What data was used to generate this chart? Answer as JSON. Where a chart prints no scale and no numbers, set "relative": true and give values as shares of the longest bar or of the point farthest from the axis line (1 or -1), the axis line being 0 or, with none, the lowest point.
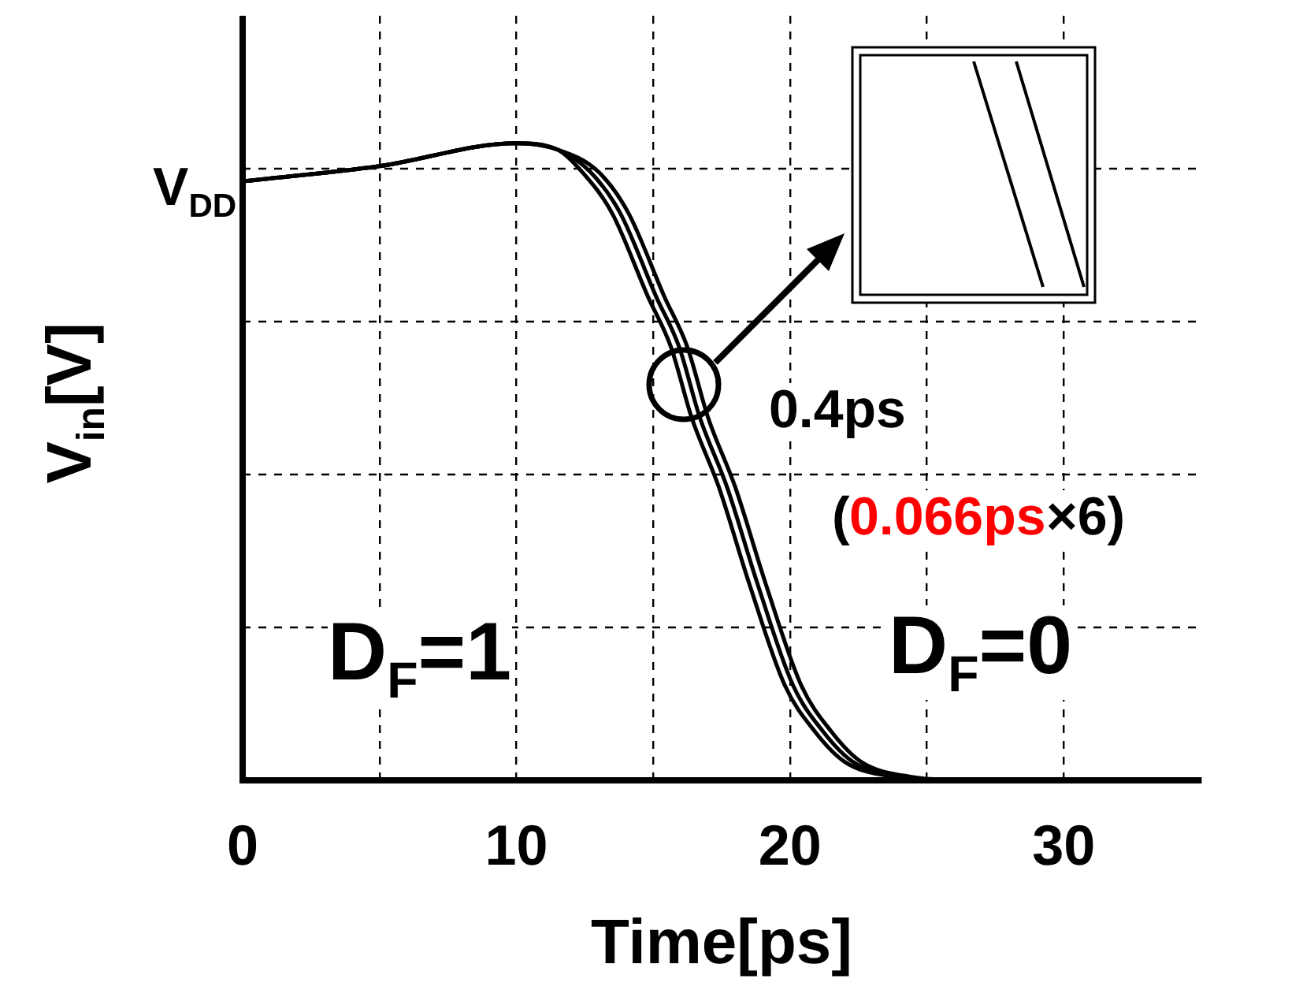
{
  "chart_data": {
    "type": "line",
    "xlabel": "Time[ps]",
    "ylabel": "V$_{in}$[V]",
    "relative": true,
    "xlim": [
      0,
      35
    ],
    "xticks": [
      0,
      {
        "value": 5,
        "label": null
      },
      10,
      {
        "value": 15,
        "label": null
      },
      20,
      {
        "value": 25,
        "label": null
      },
      30
    ],
    "grid": true,
    "legend": false,
    "marker": "none",
    "line_style": "solid",
    "series": [
      {
        "color": "#000000",
        "x": [
          0,
          5,
          10,
          11.5,
          12.4,
          13.5,
          14.8,
          15.65,
          16.4,
          17.4,
          18.5,
          19.8,
          20.9,
          22,
          23.9,
          25.5
        ],
        "values": [
          0.94,
          0.964,
          1,
          0.99,
          0.955,
          0.89,
          0.76,
          0.68,
          0.57,
          0.46,
          0.31,
          0.15,
          0.077,
          0.029,
          0.005,
          0
        ]
      },
      {
        "color": "#000000",
        "x": [
          0,
          5,
          10,
          11.5,
          12.7,
          13.8,
          15.1,
          15.95,
          16.7,
          17.7,
          18.8,
          20.1,
          21.2,
          22.3,
          24.2,
          25.8
        ],
        "values": [
          0.94,
          0.964,
          1,
          0.99,
          0.955,
          0.89,
          0.76,
          0.68,
          0.57,
          0.46,
          0.31,
          0.15,
          0.077,
          0.029,
          0.005,
          0
        ]
      },
      {
        "color": "#000000",
        "x": [
          0,
          5,
          10,
          11.5,
          13,
          14.1,
          15.4,
          16.25,
          17,
          18,
          19.1,
          20.4,
          21.5,
          22.6,
          24.5,
          26.1
        ],
        "values": [
          0.94,
          0.964,
          1,
          0.99,
          0.955,
          0.89,
          0.76,
          0.68,
          0.57,
          0.46,
          0.31,
          0.15,
          0.077,
          0.029,
          0.005,
          0
        ]
      }
    ],
    "annotations": [
      {
        "text": "V$_{DD}$",
        "x": 0,
        "y": 0.94
      },
      "0.4ps",
      "(",
      "0.066ps",
      "×6)",
      "D$_{F}$=1",
      "D$_{F}$=0"
    ]
  }
}
